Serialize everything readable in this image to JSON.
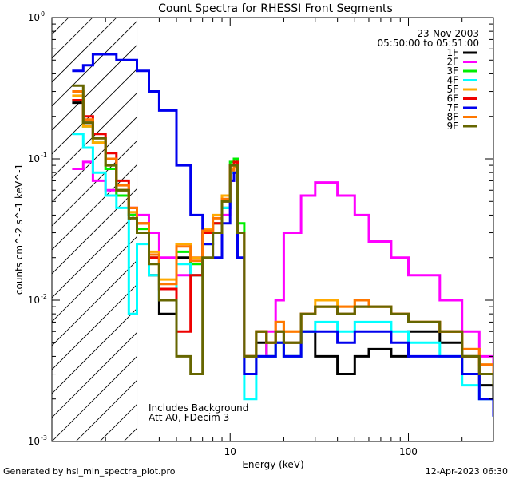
{
  "chart_data": {
    "type": "line",
    "title": "Count Spectra for RHESSI Front Segments",
    "xlabel": "Energy (keV)",
    "ylabel": "counts cm^-2 s^-1 keV^-1",
    "xscale": "log",
    "yscale": "log",
    "xlim": [
      1,
      300
    ],
    "ylim": [
      0.001,
      1
    ],
    "x_ticks": [
      {
        "v": 10,
        "label": "10"
      },
      {
        "v": 100,
        "label": "100"
      }
    ],
    "y_ticks": [
      {
        "v": 1,
        "base": "10",
        "exp": "0"
      },
      {
        "v": 0.1,
        "base": "10",
        "exp": "-1"
      },
      {
        "v": 0.01,
        "base": "10",
        "exp": "-2"
      },
      {
        "v": 0.001,
        "base": "10",
        "exp": "-3"
      }
    ],
    "date": "23-Nov-2003",
    "time_range": "05:50:00 to 05:51:00",
    "shaded_region_below_keV": 3,
    "annotation_lines": [
      "Includes Background",
      "Att A0, FDecim 3"
    ],
    "footer_left": "Generated by hsi_min_spectra_plot.pro",
    "footer_right": "12-Apr-2023 06:30",
    "series": [
      {
        "name": "1F",
        "color": "#000000",
        "x": [
          1.3,
          1.5,
          1.7,
          2.0,
          2.3,
          2.7,
          3.0,
          3.5,
          4.0,
          5.0,
          6.0,
          7.0,
          8.0,
          9.0,
          10.0,
          10.5,
          11.0,
          12.0,
          14.0,
          16.0,
          18.0,
          20.0,
          25.0,
          30.0,
          40.0,
          50.0,
          60.0,
          80.0,
          100.0,
          150.0,
          200.0,
          250.0,
          300.0
        ],
        "values": [
          0.25,
          0.18,
          0.14,
          0.1,
          0.06,
          0.04,
          0.03,
          0.015,
          0.008,
          0.02,
          0.015,
          0.025,
          0.03,
          0.045,
          0.08,
          0.09,
          0.03,
          0.003,
          0.005,
          0.004,
          0.005,
          0.004,
          0.006,
          0.004,
          0.003,
          0.004,
          0.0045,
          0.004,
          0.006,
          0.005,
          0.003,
          0.0025,
          0.002
        ]
      },
      {
        "name": "2F",
        "color": "#ff00ff",
        "x": [
          1.3,
          1.5,
          1.7,
          2.0,
          2.3,
          2.7,
          3.0,
          3.5,
          4.0,
          5.0,
          6.0,
          7.0,
          8.0,
          9.0,
          10.0,
          10.5,
          11.0,
          12.0,
          14.0,
          16.0,
          18.0,
          20.0,
          25.0,
          30.0,
          40.0,
          50.0,
          60.0,
          80.0,
          100.0,
          150.0,
          200.0,
          250.0,
          300.0
        ],
        "values": [
          0.085,
          0.095,
          0.07,
          0.06,
          0.055,
          0.045,
          0.04,
          0.03,
          0.02,
          0.015,
          0.02,
          0.03,
          0.035,
          0.04,
          0.07,
          0.08,
          0.03,
          0.004,
          0.004,
          0.006,
          0.01,
          0.03,
          0.055,
          0.068,
          0.055,
          0.04,
          0.026,
          0.02,
          0.015,
          0.01,
          0.006,
          0.004,
          0.003
        ]
      },
      {
        "name": "3F",
        "color": "#00ee00",
        "x": [
          1.3,
          1.5,
          1.7,
          2.0,
          2.3,
          2.7,
          3.0,
          3.5,
          4.0,
          5.0,
          6.0,
          7.0,
          8.0,
          9.0,
          10.0,
          10.5,
          11.0,
          12.0,
          14.0,
          16.0,
          18.0,
          20.0,
          25.0,
          30.0,
          40.0,
          50.0,
          60.0,
          80.0,
          100.0,
          150.0,
          200.0,
          250.0,
          300.0
        ],
        "values": [
          0.26,
          0.17,
          0.13,
          0.085,
          0.055,
          0.04,
          0.032,
          0.02,
          0.012,
          0.022,
          0.018,
          0.03,
          0.035,
          0.05,
          0.095,
          0.1,
          0.035,
          0.004,
          0.006,
          0.005,
          0.006,
          0.005,
          0.008,
          0.009,
          0.008,
          0.009,
          0.009,
          0.008,
          0.007,
          0.006,
          0.004,
          0.003,
          0.0025
        ]
      },
      {
        "name": "4F",
        "color": "#00ffff",
        "x": [
          1.3,
          1.5,
          1.7,
          2.0,
          2.3,
          2.7,
          3.0,
          3.5,
          4.0,
          5.0,
          6.0,
          7.0,
          8.0,
          9.0,
          10.0,
          10.5,
          11.0,
          12.0,
          14.0,
          16.0,
          18.0,
          20.0,
          25.0,
          30.0,
          40.0,
          50.0,
          60.0,
          80.0,
          100.0,
          150.0,
          200.0,
          250.0,
          300.0
        ],
        "values": [
          0.15,
          0.12,
          0.08,
          0.055,
          0.045,
          0.008,
          0.025,
          0.015,
          0.01,
          0.018,
          0.015,
          0.025,
          0.03,
          0.045,
          0.08,
          0.09,
          0.03,
          0.002,
          0.004,
          0.004,
          0.005,
          0.004,
          0.006,
          0.007,
          0.006,
          0.007,
          0.007,
          0.006,
          0.005,
          0.004,
          0.0025,
          0.002,
          0.0015
        ]
      },
      {
        "name": "5F",
        "color": "#ffaa00",
        "x": [
          1.3,
          1.5,
          1.7,
          2.0,
          2.3,
          2.7,
          3.0,
          3.5,
          4.0,
          5.0,
          6.0,
          7.0,
          8.0,
          9.0,
          10.0,
          10.5,
          11.0,
          12.0,
          14.0,
          16.0,
          18.0,
          20.0,
          25.0,
          30.0,
          40.0,
          50.0,
          60.0,
          80.0,
          100.0,
          150.0,
          200.0,
          250.0,
          300.0
        ],
        "values": [
          0.28,
          0.17,
          0.13,
          0.09,
          0.06,
          0.042,
          0.035,
          0.022,
          0.014,
          0.025,
          0.02,
          0.032,
          0.04,
          0.055,
          0.085,
          0.09,
          0.03,
          0.004,
          0.006,
          0.005,
          0.007,
          0.006,
          0.008,
          0.01,
          0.009,
          0.01,
          0.009,
          0.008,
          0.007,
          0.006,
          0.0045,
          0.0035,
          0.003
        ]
      },
      {
        "name": "6F",
        "color": "#ee0000",
        "x": [
          1.3,
          1.5,
          1.7,
          2.0,
          2.3,
          2.7,
          3.0,
          3.5,
          4.0,
          5.0,
          6.0,
          7.0,
          8.0,
          9.0,
          10.0,
          10.5,
          11.0,
          12.0,
          14.0,
          16.0,
          18.0,
          20.0,
          25.0,
          30.0,
          40.0,
          50.0,
          60.0,
          80.0,
          100.0,
          150.0,
          200.0,
          250.0,
          300.0
        ],
        "values": [
          0.26,
          0.2,
          0.15,
          0.11,
          0.07,
          0.045,
          0.035,
          0.02,
          0.012,
          0.006,
          0.015,
          0.03,
          0.035,
          0.05,
          0.09,
          0.095,
          0.03,
          0.004,
          0.006,
          0.005,
          0.006,
          0.005,
          0.008,
          0.009,
          0.008,
          0.009,
          0.009,
          0.008,
          0.007,
          0.006,
          0.004,
          0.003,
          0.0025
        ]
      },
      {
        "name": "7F",
        "color": "#0000ee",
        "x": [
          1.3,
          1.5,
          1.7,
          2.0,
          2.3,
          2.7,
          3.0,
          3.5,
          4.0,
          5.0,
          6.0,
          7.0,
          8.0,
          9.0,
          10.0,
          10.5,
          11.0,
          12.0,
          14.0,
          16.0,
          18.0,
          20.0,
          25.0,
          30.0,
          40.0,
          50.0,
          60.0,
          80.0,
          100.0,
          150.0,
          200.0,
          250.0,
          300.0
        ],
        "values": [
          0.42,
          0.46,
          0.55,
          0.55,
          0.5,
          0.5,
          0.42,
          0.3,
          0.22,
          0.09,
          0.04,
          0.025,
          0.02,
          0.035,
          0.07,
          0.08,
          0.02,
          0.003,
          0.004,
          0.004,
          0.005,
          0.004,
          0.006,
          0.006,
          0.005,
          0.006,
          0.006,
          0.005,
          0.004,
          0.004,
          0.003,
          0.002,
          0.0015
        ]
      },
      {
        "name": "8F",
        "color": "#ff7700",
        "x": [
          1.3,
          1.5,
          1.7,
          2.0,
          2.3,
          2.7,
          3.0,
          3.5,
          4.0,
          5.0,
          6.0,
          7.0,
          8.0,
          9.0,
          10.0,
          10.5,
          11.0,
          12.0,
          14.0,
          16.0,
          18.0,
          20.0,
          25.0,
          30.0,
          40.0,
          50.0,
          60.0,
          80.0,
          100.0,
          150.0,
          200.0,
          250.0,
          300.0
        ],
        "values": [
          0.3,
          0.19,
          0.14,
          0.1,
          0.065,
          0.045,
          0.035,
          0.021,
          0.013,
          0.024,
          0.019,
          0.031,
          0.038,
          0.052,
          0.083,
          0.088,
          0.03,
          0.004,
          0.006,
          0.005,
          0.007,
          0.006,
          0.008,
          0.009,
          0.009,
          0.01,
          0.009,
          0.008,
          0.007,
          0.006,
          0.0045,
          0.0035,
          0.003
        ]
      },
      {
        "name": "9F",
        "color": "#666600",
        "x": [
          1.3,
          1.5,
          1.7,
          2.0,
          2.3,
          2.7,
          3.0,
          3.5,
          4.0,
          5.0,
          6.0,
          7.0,
          8.0,
          9.0,
          10.0,
          10.5,
          11.0,
          12.0,
          14.0,
          16.0,
          18.0,
          20.0,
          25.0,
          30.0,
          40.0,
          50.0,
          60.0,
          80.0,
          100.0,
          150.0,
          200.0,
          250.0,
          300.0
        ],
        "values": [
          0.33,
          0.18,
          0.14,
          0.09,
          0.06,
          0.038,
          0.03,
          0.018,
          0.01,
          0.004,
          0.003,
          0.02,
          0.03,
          0.05,
          0.09,
          0.09,
          0.03,
          0.004,
          0.006,
          0.005,
          0.006,
          0.005,
          0.008,
          0.009,
          0.008,
          0.009,
          0.009,
          0.008,
          0.007,
          0.006,
          0.004,
          0.003,
          0.0025
        ]
      }
    ]
  }
}
